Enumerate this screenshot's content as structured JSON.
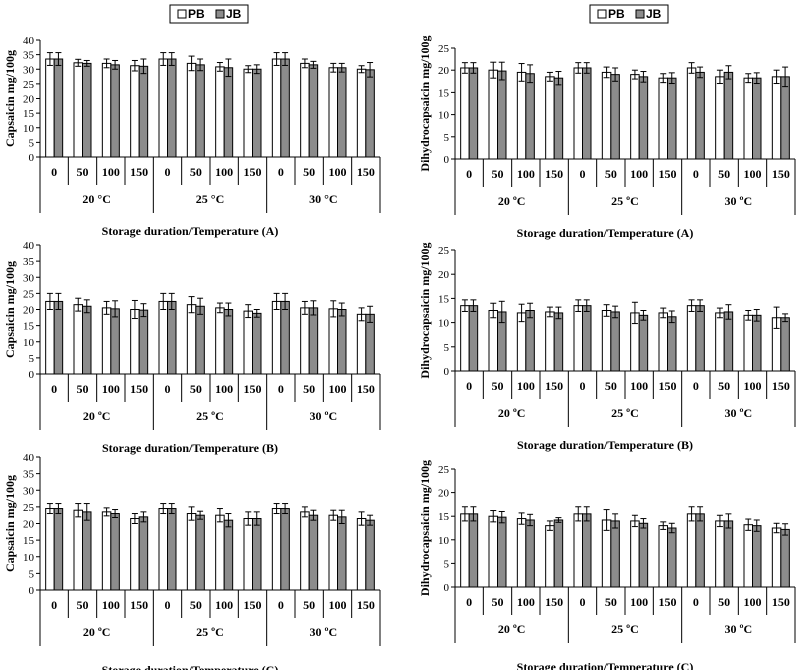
{
  "legend": {
    "labels": [
      "PB",
      "JB"
    ],
    "colors": [
      "#ffffff",
      "#8c8c8c"
    ]
  },
  "chart_data": [
    {
      "type": "bar",
      "panel": "A-left",
      "ylabel": "Capsaicin mg/100g",
      "xlabel": "Storage duration/Temperature (A)",
      "ylim": [
        0,
        40
      ],
      "ytick_step": 5,
      "groups": [
        "20 °C",
        "25 °C",
        "30 °C"
      ],
      "categories": [
        "0",
        "50",
        "100",
        "150",
        "0",
        "50",
        "100",
        "150",
        "0",
        "50",
        "100",
        "150"
      ],
      "series": [
        {
          "name": "PB",
          "values": [
            33.5,
            32.2,
            32.0,
            31.2,
            33.5,
            32.0,
            30.8,
            30.0,
            33.5,
            32.0,
            30.5,
            30.0
          ],
          "errors": [
            2.2,
            1.2,
            1.5,
            1.8,
            2.2,
            2.5,
            1.5,
            1.2,
            2.2,
            1.5,
            1.5,
            1.2
          ]
        },
        {
          "name": "JB",
          "values": [
            33.5,
            32.0,
            31.5,
            31.0,
            33.5,
            31.5,
            30.5,
            30.0,
            33.5,
            31.5,
            30.5,
            29.8
          ],
          "errors": [
            2.2,
            1.0,
            1.5,
            2.5,
            2.2,
            2.0,
            3.0,
            1.5,
            2.2,
            1.2,
            1.5,
            2.5
          ]
        }
      ]
    },
    {
      "type": "bar",
      "panel": "A-right",
      "ylabel": "Dihydrocapsaicin mg/100g",
      "xlabel": "Storage duration/Temperature (A)",
      "ylim": [
        0,
        25
      ],
      "ytick_step": 5,
      "groups": [
        "20 ºC",
        "25 ºC",
        "30 ºC"
      ],
      "categories": [
        "0",
        "50",
        "100",
        "150",
        "0",
        "50",
        "100",
        "150",
        "0",
        "50",
        "100",
        "150"
      ],
      "series": [
        {
          "name": "PB",
          "values": [
            20.5,
            20.0,
            19.5,
            18.5,
            20.5,
            19.5,
            19.0,
            18.2,
            20.5,
            18.5,
            18.2,
            18.5
          ],
          "errors": [
            1.2,
            1.8,
            2.0,
            1.0,
            1.2,
            1.2,
            1.0,
            1.0,
            1.2,
            1.5,
            1.0,
            1.5
          ]
        },
        {
          "name": "JB",
          "values": [
            20.5,
            19.8,
            19.2,
            18.2,
            20.5,
            19.0,
            18.5,
            18.2,
            19.5,
            19.5,
            18.2,
            18.5
          ],
          "errors": [
            1.2,
            2.0,
            2.0,
            1.5,
            1.2,
            1.5,
            1.2,
            1.2,
            1.2,
            1.5,
            1.2,
            2.2
          ]
        }
      ]
    },
    {
      "type": "bar",
      "panel": "B-left",
      "ylabel": "Capsaicin mg/100g",
      "xlabel": "Storage duration/Temperature (B)",
      "ylim": [
        0,
        40
      ],
      "ytick_step": 5,
      "groups": [
        "20 ºC",
        "25 ºC",
        "30 ºC"
      ],
      "categories": [
        "0",
        "50",
        "100",
        "150",
        "0",
        "50",
        "100",
        "150",
        "0",
        "50",
        "100",
        "150"
      ],
      "series": [
        {
          "name": "PB",
          "values": [
            22.5,
            21.5,
            20.5,
            20.0,
            22.5,
            21.5,
            20.5,
            19.5,
            22.5,
            20.5,
            20.2,
            18.5
          ],
          "errors": [
            2.5,
            2.0,
            2.0,
            2.8,
            2.5,
            2.5,
            1.5,
            2.0,
            2.5,
            2.0,
            2.5,
            2.0
          ]
        },
        {
          "name": "JB",
          "values": [
            22.5,
            21.0,
            20.2,
            19.8,
            22.5,
            21.0,
            20.0,
            18.8,
            22.5,
            20.5,
            20.0,
            18.5
          ],
          "errors": [
            2.5,
            2.0,
            2.5,
            2.0,
            2.5,
            2.5,
            2.0,
            1.2,
            2.5,
            2.2,
            2.0,
            2.5
          ]
        }
      ]
    },
    {
      "type": "bar",
      "panel": "B-right",
      "ylabel": "Dihydrocapsaicin mg/100g",
      "xlabel": "Storage duration/Temperature (B)",
      "ylim": [
        0,
        25
      ],
      "ytick_step": 5,
      "groups": [
        "20 ºC",
        "25 ºC",
        "30 ºC"
      ],
      "categories": [
        "0",
        "50",
        "100",
        "150",
        "0",
        "50",
        "100",
        "150",
        "0",
        "50",
        "100",
        "150"
      ],
      "series": [
        {
          "name": "PB",
          "values": [
            13.5,
            12.5,
            12.0,
            12.2,
            13.5,
            12.5,
            12.0,
            12.0,
            13.5,
            12.0,
            11.5,
            11.0
          ],
          "errors": [
            1.2,
            1.5,
            1.8,
            1.0,
            1.2,
            1.2,
            2.2,
            1.0,
            1.2,
            1.0,
            1.0,
            2.2
          ]
        },
        {
          "name": "JB",
          "values": [
            13.5,
            12.2,
            12.5,
            12.0,
            13.5,
            12.2,
            11.5,
            11.2,
            13.5,
            12.2,
            11.5,
            11.0
          ],
          "errors": [
            1.2,
            2.2,
            1.5,
            1.2,
            1.2,
            1.2,
            1.0,
            1.2,
            1.2,
            1.5,
            1.2,
            0.8
          ]
        }
      ]
    },
    {
      "type": "bar",
      "panel": "C-left",
      "ylabel": "Capsaicin mg/100g",
      "xlabel": "Storage duration/Temperature (C)",
      "ylim": [
        0,
        40
      ],
      "ytick_step": 5,
      "groups": [
        "20 ºC",
        "25 ºC",
        "30 ºC"
      ],
      "categories": [
        "0",
        "50",
        "100",
        "150",
        "0",
        "50",
        "100",
        "150",
        "0",
        "50",
        "100",
        "150"
      ],
      "series": [
        {
          "name": "PB",
          "values": [
            24.5,
            24.0,
            23.5,
            21.5,
            24.5,
            23.0,
            22.5,
            21.5,
            24.5,
            23.5,
            22.5,
            21.5
          ],
          "errors": [
            1.5,
            2.0,
            1.2,
            1.5,
            1.5,
            2.0,
            2.0,
            2.0,
            1.5,
            1.5,
            1.5,
            2.0
          ]
        },
        {
          "name": "JB",
          "values": [
            24.5,
            23.5,
            23.0,
            22.0,
            24.5,
            22.5,
            21.0,
            21.5,
            24.5,
            22.5,
            22.0,
            21.0
          ],
          "errors": [
            1.5,
            2.5,
            1.2,
            1.5,
            1.5,
            1.2,
            2.0,
            2.0,
            1.5,
            1.5,
            2.0,
            1.5
          ]
        }
      ]
    },
    {
      "type": "bar",
      "panel": "C-right",
      "ylabel": "Dihydrocapsaicin mg/100g",
      "xlabel": "Storage duration/Temperature (C)",
      "ylim": [
        0,
        25
      ],
      "ytick_step": 5,
      "groups": [
        "20 ºC",
        "25 ºC",
        "30 ºC"
      ],
      "categories": [
        "0",
        "50",
        "100",
        "150",
        "0",
        "50",
        "100",
        "150",
        "0",
        "50",
        "100",
        "150"
      ],
      "series": [
        {
          "name": "PB",
          "values": [
            15.5,
            15.0,
            14.5,
            13.0,
            15.5,
            14.2,
            14.0,
            13.0,
            15.5,
            14.0,
            13.2,
            12.5
          ],
          "errors": [
            1.5,
            1.2,
            1.2,
            1.0,
            1.5,
            2.2,
            1.2,
            0.8,
            1.5,
            1.2,
            1.2,
            1.0
          ]
        },
        {
          "name": "JB",
          "values": [
            15.5,
            14.8,
            14.2,
            14.2,
            15.5,
            14.0,
            13.5,
            12.5,
            15.5,
            14.0,
            13.0,
            12.2
          ],
          "errors": [
            1.5,
            1.2,
            1.2,
            0.5,
            1.5,
            1.5,
            1.0,
            1.0,
            1.5,
            1.5,
            1.2,
            1.2
          ]
        }
      ]
    }
  ]
}
